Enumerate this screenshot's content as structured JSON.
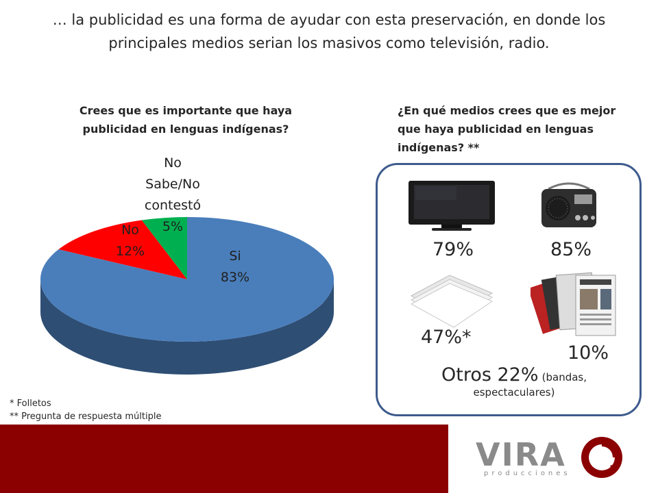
{
  "headline": "… la publicidad es una forma de ayudar con esta preservación, en donde los principales medios serian los masivos como televisión, radio.",
  "chart_data": [
    {
      "type": "pie",
      "title": "Crees que es importante que haya publicidad en lenguas indígenas?",
      "slices": [
        {
          "label_lines": [
            "Si"
          ],
          "pct_label": "83%",
          "value": 83,
          "color": "#4a7ebb"
        },
        {
          "label_lines": [
            "No"
          ],
          "pct_label": "12%",
          "value": 12,
          "color": "#ff0000"
        },
        {
          "label_lines": [
            "No",
            "Sabe/No",
            "contestó"
          ],
          "pct_label": "5%",
          "value": 5,
          "color": "#00b050"
        }
      ]
    }
  ],
  "media": {
    "question": "¿En qué medios crees que es mejor que haya publicidad en lenguas indígenas? **",
    "items": [
      {
        "icon": "television-icon",
        "pct": "79%"
      },
      {
        "icon": "radio-icon",
        "pct": "85%"
      },
      {
        "icon": "paper-stack-icon",
        "pct": "47%*"
      },
      {
        "icon": "newspaper-icon",
        "pct": "10%"
      }
    ],
    "otros_main": "Otros 22%",
    "otros_detail": "(bandas, espectaculares)"
  },
  "notes": [
    "* Folletos",
    "** Pregunta de respuesta múltiple"
  ],
  "brand": {
    "name": "VIRA",
    "sub": "producciones",
    "color": "#8b0000"
  }
}
